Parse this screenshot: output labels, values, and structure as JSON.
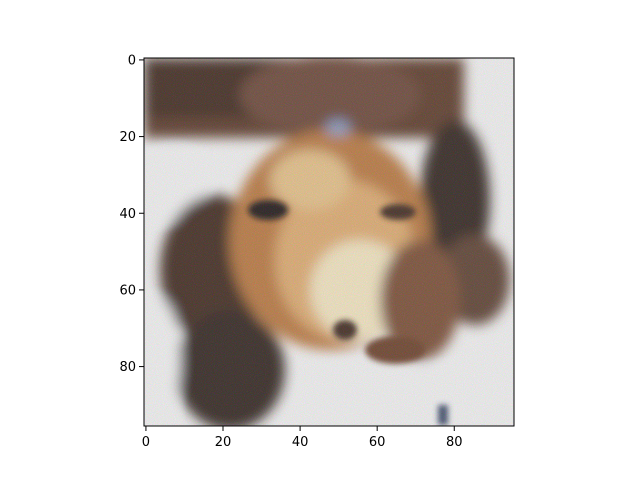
{
  "image": {
    "description_icon": "generated-face-image-icon",
    "palette": {
      "dark_brown": "#3a2418",
      "mid_brown": "#7a4a2e",
      "orange": "#c0783a",
      "skin": "#f0c88a",
      "highlight": "#fff6dc",
      "white": "#ffffff",
      "bluish": "#8aa0c8",
      "black": "#141010"
    }
  },
  "axes": {
    "x_ticks": [
      "0",
      "20",
      "40",
      "60",
      "80"
    ],
    "y_ticks": [
      "0",
      "20",
      "40",
      "60",
      "80"
    ],
    "x_range": [
      -0.5,
      95.5
    ],
    "y_range": [
      -0.5,
      95.5
    ],
    "frame_color": "#000000"
  }
}
